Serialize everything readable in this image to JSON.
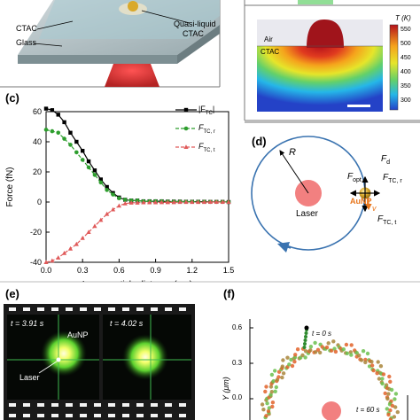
{
  "panel_a": {
    "labels": {
      "ctac": "CTAC",
      "glass": "Glass",
      "quasi_liquid": "Quasi-liquid",
      "quasi_liquid_sub": "CTAC"
    }
  },
  "panel_b": {
    "labels": {
      "air": "Air",
      "ctac": "CTAC"
    },
    "colorbar": {
      "title": "T (K)",
      "ticks": [
        "550",
        "500",
        "450",
        "400",
        "350",
        "300"
      ]
    }
  },
  "panel_c": {
    "panel_label": "(c)",
    "chart_data": {
      "type": "line",
      "xlabel": "Laser-particle distance (μm)",
      "ylabel": "Force (fN)",
      "xlim": [
        0,
        1.5
      ],
      "ylim": [
        -40,
        60
      ],
      "x_ticks": [
        "0.0",
        "0.3",
        "0.6",
        "0.9",
        "1.2",
        "1.5"
      ],
      "y_ticks": [
        "60",
        "40",
        "20",
        "0",
        "-20",
        "-40"
      ],
      "legend_position": "top-right",
      "series": [
        {
          "name": "|F_TC|",
          "color": "#000000",
          "marker": "square",
          "dash": "solid",
          "x": [
            0,
            0.05,
            0.1,
            0.15,
            0.2,
            0.25,
            0.3,
            0.35,
            0.4,
            0.45,
            0.5,
            0.55,
            0.6,
            0.65,
            0.7,
            0.75,
            0.8,
            0.85,
            0.9,
            0.95,
            1.0,
            1.05,
            1.1,
            1.15,
            1.2,
            1.25,
            1.3,
            1.35,
            1.4,
            1.45,
            1.5
          ],
          "values": [
            62,
            61,
            58,
            53,
            46,
            40,
            34,
            27,
            21,
            15,
            10,
            6,
            3,
            1.5,
            1,
            1,
            0.5,
            0.5,
            0.5,
            0.5,
            0.3,
            0.3,
            0.3,
            0.2,
            0.2,
            0.2,
            0.2,
            0.1,
            0.1,
            0.1,
            0
          ]
        },
        {
          "name": "F_TC,r",
          "color": "#2e9e2e",
          "marker": "circle",
          "dash": "dashed",
          "x": [
            0,
            0.05,
            0.1,
            0.15,
            0.2,
            0.25,
            0.3,
            0.35,
            0.4,
            0.45,
            0.5,
            0.55,
            0.6,
            0.65,
            0.7,
            0.75,
            0.8,
            0.85,
            0.9,
            0.95,
            1.0,
            1.05,
            1.1,
            1.15,
            1.2,
            1.25,
            1.3,
            1.35,
            1.4,
            1.45,
            1.5
          ],
          "values": [
            48,
            47,
            46,
            42,
            38,
            33,
            28,
            23,
            18,
            13,
            8,
            5,
            2.5,
            1.5,
            1,
            1,
            0.5,
            0.5,
            0.5,
            0.5,
            0.3,
            0.3,
            0.3,
            0.2,
            0.2,
            0.2,
            0.2,
            0.1,
            0.1,
            0.1,
            0
          ]
        },
        {
          "name": "F_TC,t",
          "color": "#e05a5a",
          "marker": "triangle",
          "dash": "dashed",
          "x": [
            0,
            0.05,
            0.1,
            0.15,
            0.2,
            0.25,
            0.3,
            0.35,
            0.4,
            0.45,
            0.5,
            0.55,
            0.6,
            0.65,
            0.7,
            0.75,
            0.8,
            0.85,
            0.9,
            0.95,
            1.0,
            1.05,
            1.1,
            1.15,
            1.2,
            1.25,
            1.3,
            1.35,
            1.4,
            1.45,
            1.5
          ],
          "values": [
            -40,
            -39,
            -37,
            -34,
            -31,
            -28,
            -24,
            -20,
            -16,
            -12,
            -8,
            -5,
            -2.5,
            -1,
            -0.5,
            -0.5,
            -0.3,
            -0.3,
            -0.3,
            -0.2,
            -0.2,
            -0.2,
            -0.1,
            -0.1,
            -0.1,
            -0.1,
            -0.1,
            0,
            0,
            0,
            0
          ]
        }
      ]
    },
    "legend_labels": {
      "l1_main": "|F",
      "l1_sub": "TC",
      "l1_end": "|",
      "l2_main": "F",
      "l2_sub": "TC, r",
      "l3_main": "F",
      "l3_sub": "TC, t"
    }
  },
  "panel_d": {
    "panel_label": "(d)",
    "labels": {
      "R": "R",
      "laser": "Laser",
      "aunp": "AuNP",
      "v": "v",
      "fd_main": "F",
      "fd_sub": "d",
      "fopt_main": "F",
      "fopt_sub": "opt",
      "ftcr_main": "F",
      "ftcr_sub": "TC, r",
      "ftct_main": "F",
      "ftct_sub": "TC, t"
    }
  },
  "panel_e": {
    "panel_label": "(e)",
    "frames": [
      {
        "time": "t = 3.91 s"
      },
      {
        "time": "t = 4.02 s"
      }
    ],
    "labels": {
      "aunp": "AuNP",
      "laser": "Laser"
    }
  },
  "panel_f": {
    "panel_label": "(f)",
    "ylabel": "Y (μm)",
    "y_ticks": [
      "0.6",
      "0.3",
      "0.0"
    ],
    "annotations": {
      "t0": "t = 0 s",
      "t60": "t = 60 s"
    }
  },
  "colors": {
    "ring": "#3a73b0",
    "laser": "#f28080",
    "gold": "#d9a92b",
    "heat_red": "#b5121b"
  }
}
